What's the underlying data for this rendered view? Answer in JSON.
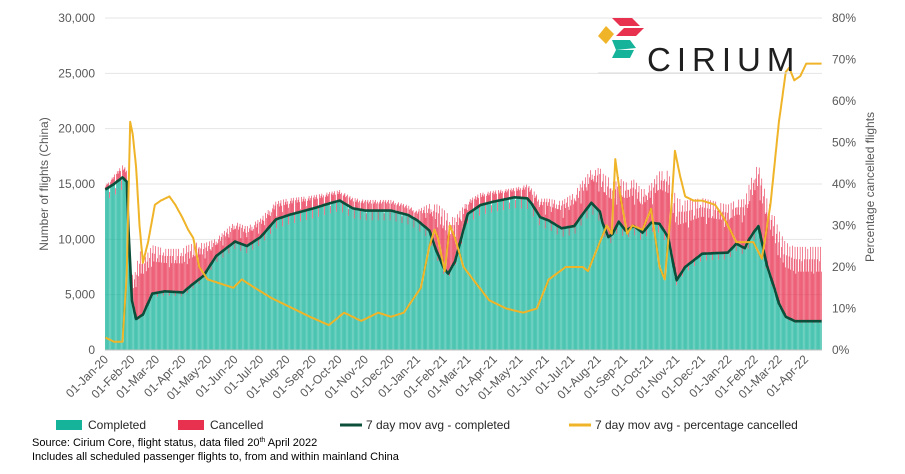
{
  "brand": {
    "name": "CIRIUM",
    "colors": {
      "red": "#e8304f",
      "yellow": "#f0b429",
      "teal": "#14b39a",
      "dark": "#1f1f1f"
    }
  },
  "footnotes": {
    "source_prefix": "Source: Cirium Core, flight status, data filed 20",
    "source_sup": "th",
    "source_suffix": " April 2022",
    "scope": "Includes all scheduled passenger flights to, from and within mainland China"
  },
  "chart_data": {
    "type": "bar",
    "stacked": true,
    "title": "",
    "xlabel": "",
    "ylabel": "Number of flights (China)",
    "y2label": "Percentage cancelled flights",
    "ylim": [
      0,
      30000
    ],
    "y2lim": [
      0,
      80
    ],
    "yticks": [
      "0",
      "5,000",
      "10,000",
      "15,000",
      "20,000",
      "25,000",
      "30,000"
    ],
    "y2ticks": [
      "0%",
      "10%",
      "20%",
      "30%",
      "40%",
      "50%",
      "60%",
      "70%",
      "80%"
    ],
    "xticks": [
      "01-Jan-20",
      "01-Feb-20",
      "01-Mar-20",
      "01-Apr-20",
      "01-May-20",
      "01-Jun-20",
      "01-Jul-20",
      "01-Aug-20",
      "01-Sep-20",
      "01-Oct-20",
      "01-Nov-20",
      "01-Dec-20",
      "01-Jan-21",
      "01-Feb-21",
      "01-Mar-21",
      "01-Apr-21",
      "01-May-21",
      "01-Jun-21",
      "01-Jul-21",
      "01-Aug-21",
      "01-Sep-21",
      "01-Oct-21",
      "01-Nov-21",
      "01-Dec-21",
      "01-Jan-22",
      "01-Feb-22",
      "01-Mar-22",
      "01-Apr-22"
    ],
    "x_start": "2020-01-01",
    "x_end": "2022-04-20",
    "legend": [
      {
        "label": "Completed",
        "type": "bar",
        "color": "#14b39a"
      },
      {
        "label": "Cancelled",
        "type": "bar",
        "color": "#e8304f"
      },
      {
        "label": "7 day mov avg - completed",
        "type": "line",
        "color": "#0b4f3a"
      },
      {
        "label": "7 day mov avg - percentage cancelled",
        "type": "line",
        "color": "#f0b429"
      }
    ],
    "legend_position": "bottom",
    "gridlines": true,
    "series_keypoints": {
      "note": "daily values are linear interpolation between these dated readings (day index from 01-Jan-20)",
      "completed": [
        [
          0,
          14500
        ],
        [
          10,
          15000
        ],
        [
          20,
          15600
        ],
        [
          25,
          15200
        ],
        [
          27,
          11000
        ],
        [
          31,
          4500
        ],
        [
          36,
          2800
        ],
        [
          44,
          3200
        ],
        [
          55,
          5100
        ],
        [
          70,
          5300
        ],
        [
          91,
          5200
        ],
        [
          100,
          5800
        ],
        [
          115,
          6700
        ],
        [
          130,
          8500
        ],
        [
          152,
          9800
        ],
        [
          166,
          9400
        ],
        [
          182,
          10200
        ],
        [
          200,
          11800
        ],
        [
          215,
          12200
        ],
        [
          244,
          12800
        ],
        [
          265,
          13300
        ],
        [
          275,
          13500
        ],
        [
          290,
          12800
        ],
        [
          305,
          12600
        ],
        [
          335,
          12600
        ],
        [
          355,
          12200
        ],
        [
          366,
          11700
        ],
        [
          380,
          10800
        ],
        [
          388,
          9000
        ],
        [
          397,
          7400
        ],
        [
          402,
          6900
        ],
        [
          410,
          8000
        ],
        [
          425,
          12300
        ],
        [
          440,
          13100
        ],
        [
          455,
          13400
        ],
        [
          480,
          13800
        ],
        [
          495,
          13700
        ],
        [
          500,
          13200
        ],
        [
          510,
          12000
        ],
        [
          520,
          11700
        ],
        [
          535,
          11000
        ],
        [
          550,
          11200
        ],
        [
          560,
          12300
        ],
        [
          570,
          13300
        ],
        [
          580,
          12500
        ],
        [
          583,
          11500
        ],
        [
          590,
          10200
        ],
        [
          595,
          10500
        ],
        [
          602,
          11600
        ],
        [
          610,
          10800
        ],
        [
          620,
          11200
        ],
        [
          630,
          10600
        ],
        [
          640,
          11500
        ],
        [
          650,
          11400
        ],
        [
          660,
          10200
        ],
        [
          666,
          7800
        ],
        [
          670,
          6300
        ],
        [
          680,
          7500
        ],
        [
          700,
          8700
        ],
        [
          730,
          8800
        ],
        [
          740,
          9600
        ],
        [
          750,
          9200
        ],
        [
          755,
          10000
        ],
        [
          761,
          10700
        ],
        [
          766,
          11200
        ],
        [
          772,
          9000
        ],
        [
          776,
          7600
        ],
        [
          785,
          5500
        ],
        [
          790,
          4200
        ],
        [
          798,
          3000
        ],
        [
          809,
          2600
        ],
        [
          840,
          2600
        ]
      ],
      "cancelled": [
        [
          0,
          300
        ],
        [
          15,
          800
        ],
        [
          25,
          1000
        ],
        [
          30,
          1500
        ],
        [
          40,
          5000
        ],
        [
          50,
          3800
        ],
        [
          70,
          3200
        ],
        [
          95,
          3300
        ],
        [
          110,
          2800
        ],
        [
          130,
          1300
        ],
        [
          152,
          1500
        ],
        [
          182,
          1400
        ],
        [
          210,
          1300
        ],
        [
          240,
          1000
        ],
        [
          270,
          800
        ],
        [
          305,
          800
        ],
        [
          335,
          800
        ],
        [
          365,
          700
        ],
        [
          380,
          2000
        ],
        [
          390,
          3800
        ],
        [
          400,
          4600
        ],
        [
          410,
          3300
        ],
        [
          425,
          1000
        ],
        [
          440,
          900
        ],
        [
          480,
          700
        ],
        [
          510,
          1400
        ],
        [
          530,
          1900
        ],
        [
          550,
          2500
        ],
        [
          568,
          2500
        ],
        [
          575,
          2800
        ],
        [
          580,
          3400
        ],
        [
          590,
          4500
        ],
        [
          600,
          3300
        ],
        [
          610,
          3600
        ],
        [
          620,
          3500
        ],
        [
          640,
          2900
        ],
        [
          660,
          5000
        ],
        [
          670,
          6200
        ],
        [
          680,
          5000
        ],
        [
          700,
          4200
        ],
        [
          730,
          3600
        ],
        [
          740,
          3300
        ],
        [
          750,
          3700
        ],
        [
          760,
          4500
        ],
        [
          770,
          4800
        ],
        [
          785,
          5500
        ],
        [
          800,
          5600
        ],
        [
          840,
          5600
        ]
      ],
      "pct_cancelled": [
        [
          0,
          3
        ],
        [
          10,
          2
        ],
        [
          20,
          2
        ],
        [
          25,
          18
        ],
        [
          29,
          55
        ],
        [
          32,
          52
        ],
        [
          36,
          44
        ],
        [
          40,
          30
        ],
        [
          44,
          21
        ],
        [
          50,
          26
        ],
        [
          58,
          35
        ],
        [
          65,
          36
        ],
        [
          75,
          37
        ],
        [
          82,
          35
        ],
        [
          90,
          32
        ],
        [
          97,
          29
        ],
        [
          103,
          27
        ],
        [
          110,
          20
        ],
        [
          120,
          17
        ],
        [
          150,
          15
        ],
        [
          160,
          17
        ],
        [
          175,
          15
        ],
        [
          195,
          12.5
        ],
        [
          220,
          10
        ],
        [
          240,
          8
        ],
        [
          262,
          6
        ],
        [
          280,
          9
        ],
        [
          300,
          7
        ],
        [
          320,
          9
        ],
        [
          335,
          8
        ],
        [
          350,
          9
        ],
        [
          360,
          12
        ],
        [
          370,
          15
        ],
        [
          380,
          25
        ],
        [
          386,
          29
        ],
        [
          390,
          27
        ],
        [
          398,
          19
        ],
        [
          404,
          30
        ],
        [
          410,
          27
        ],
        [
          420,
          20
        ],
        [
          450,
          12
        ],
        [
          470,
          10
        ],
        [
          490,
          9
        ],
        [
          506,
          10
        ],
        [
          520,
          17
        ],
        [
          540,
          20
        ],
        [
          560,
          20
        ],
        [
          566,
          19
        ],
        [
          578,
          25
        ],
        [
          588,
          30
        ],
        [
          594,
          28
        ],
        [
          598,
          46
        ],
        [
          604,
          37
        ],
        [
          612,
          28
        ],
        [
          618,
          30
        ],
        [
          630,
          29
        ],
        [
          640,
          34
        ],
        [
          650,
          20
        ],
        [
          656,
          17
        ],
        [
          664,
          35
        ],
        [
          668,
          48
        ],
        [
          674,
          42
        ],
        [
          680,
          37
        ],
        [
          690,
          36
        ],
        [
          700,
          36
        ],
        [
          715,
          35
        ],
        [
          725,
          32
        ],
        [
          740,
          26
        ],
        [
          760,
          26
        ],
        [
          770,
          22
        ],
        [
          780,
          35
        ],
        [
          790,
          55
        ],
        [
          798,
          67
        ],
        [
          802,
          68
        ],
        [
          808,
          65
        ],
        [
          815,
          66
        ],
        [
          822,
          69
        ]
      ]
    }
  }
}
